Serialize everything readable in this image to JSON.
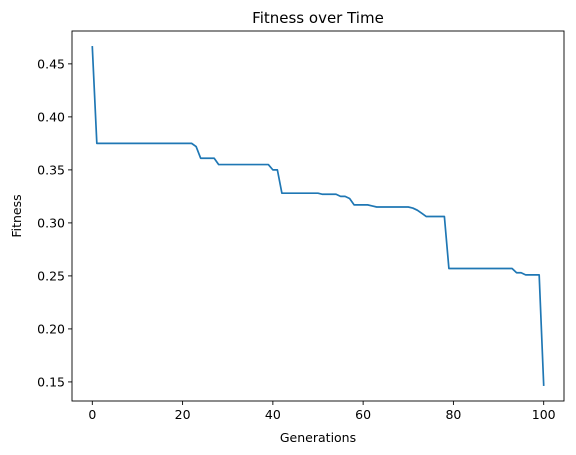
{
  "chart_data": {
    "type": "line",
    "title": "Fitness over Time",
    "xlabel": "Generations",
    "ylabel": "Fitness",
    "xlim": [
      -4.5,
      104.5
    ],
    "ylim": [
      0.132,
      0.481
    ],
    "xticks": [
      0,
      20,
      40,
      60,
      80,
      100
    ],
    "xtick_labels": [
      "0",
      "20",
      "40",
      "60",
      "80",
      "100"
    ],
    "yticks": [
      0.15,
      0.2,
      0.25,
      0.3,
      0.35,
      0.4,
      0.45
    ],
    "ytick_labels": [
      "0.15",
      "0.20",
      "0.25",
      "0.30",
      "0.35",
      "0.40",
      "0.45"
    ],
    "grid": false,
    "legend": "none",
    "series": [
      {
        "color": "#1f77b4",
        "x": [
          0,
          1,
          22,
          23,
          24,
          27,
          28,
          39,
          40,
          41,
          42,
          50,
          51,
          54,
          55,
          56,
          57,
          58,
          61,
          62,
          63,
          70,
          71,
          72,
          73,
          74,
          78,
          79,
          93,
          94,
          95,
          96,
          99,
          100
        ],
        "y": [
          0.466,
          0.375,
          0.375,
          0.372,
          0.361,
          0.361,
          0.355,
          0.355,
          0.35,
          0.35,
          0.328,
          0.328,
          0.327,
          0.327,
          0.325,
          0.325,
          0.323,
          0.317,
          0.317,
          0.316,
          0.315,
          0.315,
          0.314,
          0.312,
          0.309,
          0.306,
          0.306,
          0.257,
          0.257,
          0.253,
          0.253,
          0.251,
          0.251,
          0.147
        ]
      }
    ]
  }
}
